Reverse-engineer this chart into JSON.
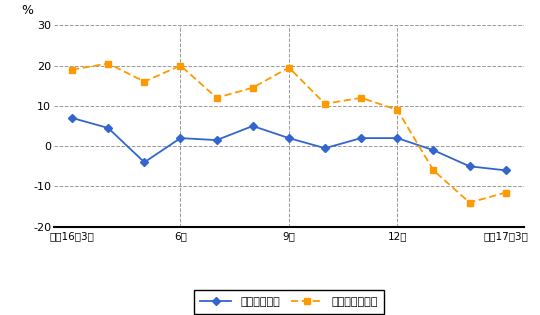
{
  "x_tick_positions": [
    0,
    3,
    6,
    9,
    12
  ],
  "x_tick_labels": [
    "平成16年3月",
    "6月",
    "9月",
    "12月",
    "平成17年3月"
  ],
  "total_hours": [
    7,
    4.5,
    -4,
    2,
    1.5,
    5,
    2,
    -0.5,
    2,
    2,
    -1,
    -5,
    -6
  ],
  "overtime_hours": [
    19,
    20.5,
    16,
    20,
    12,
    14.5,
    19.5,
    10.5,
    12,
    9,
    -6,
    -14,
    -11.5
  ],
  "ylim": [
    -20,
    30
  ],
  "yticks": [
    -20,
    -10,
    0,
    10,
    20,
    30
  ],
  "ylabel": "%",
  "line1_color": "#3366CC",
  "line1_label": "総実労働時間",
  "line2_color": "#FF9900",
  "line2_label": "所定外労働時間",
  "bg_color": "#FFFFFF",
  "grid_color": "#999999",
  "vline_positions": [
    3,
    6,
    9
  ]
}
